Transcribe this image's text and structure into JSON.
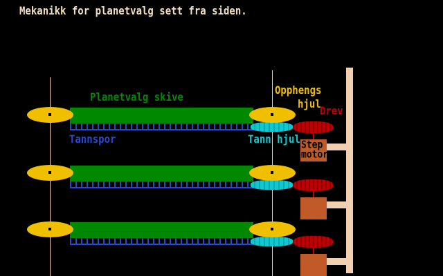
{
  "title": "Mekanikk for planetvalg sett fra siden.",
  "labels": {
    "disc": "Planetvalg skive",
    "rack": "Tannspor",
    "suspension_wheel_line1": "Opphengs",
    "suspension_wheel_line2": "hjul",
    "drive": "Drev",
    "gear": "Tann hjul",
    "motor_line1": "Step",
    "motor_line2": "motor"
  },
  "colors": {
    "title": "#f0e0c0",
    "wheel": "#f0c000",
    "disc": "#008800",
    "rack": "#2848d0",
    "gear": "#10c8d0",
    "drive": "#c00000",
    "motor": "#c05a28",
    "frame": "#f0d0b0"
  }
}
